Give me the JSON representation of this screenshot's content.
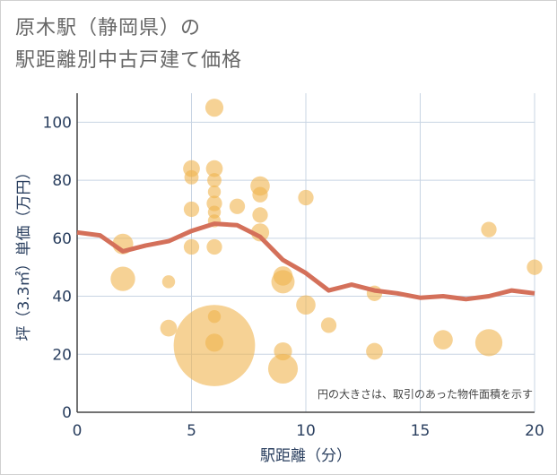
{
  "title_lines": [
    "原木駅（静岡県）の",
    "駅距離別中古戸建て価格"
  ],
  "chart_data": {
    "type": "scatter",
    "xlabel": "駅距離（分）",
    "ylabel": "坪（3.3㎡）単価（万円）",
    "xlim": [
      0,
      20
    ],
    "ylim": [
      0,
      110
    ],
    "xticks": [
      0,
      5,
      10,
      15,
      20
    ],
    "yticks": [
      0,
      20,
      40,
      60,
      80,
      100
    ],
    "annotation": "円の大きさは、取引のあった物件面積を示す",
    "colors": {
      "bubble": "#f0b44f",
      "line": "#d4705a",
      "grid": "#c8d4e3"
    },
    "bubbles": [
      {
        "x": 2,
        "y": 58,
        "size": 1.6
      },
      {
        "x": 2,
        "y": 46,
        "size": 1.9
      },
      {
        "x": 4,
        "y": 45,
        "size": 1.0
      },
      {
        "x": 4,
        "y": 29,
        "size": 1.3
      },
      {
        "x": 5,
        "y": 84,
        "size": 1.3
      },
      {
        "x": 5,
        "y": 81,
        "size": 1.1
      },
      {
        "x": 5,
        "y": 70,
        "size": 1.2
      },
      {
        "x": 5,
        "y": 57,
        "size": 1.2
      },
      {
        "x": 6,
        "y": 105,
        "size": 1.4
      },
      {
        "x": 6,
        "y": 84,
        "size": 1.3
      },
      {
        "x": 6,
        "y": 80,
        "size": 1.1
      },
      {
        "x": 6,
        "y": 76,
        "size": 1.0
      },
      {
        "x": 6,
        "y": 72,
        "size": 1.2
      },
      {
        "x": 6,
        "y": 69,
        "size": 1.0
      },
      {
        "x": 6,
        "y": 66,
        "size": 1.0
      },
      {
        "x": 6,
        "y": 57,
        "size": 1.2
      },
      {
        "x": 6,
        "y": 33,
        "size": 1.0
      },
      {
        "x": 6,
        "y": 24,
        "size": 1.4
      },
      {
        "x": 6,
        "y": 23,
        "size": 6.3
      },
      {
        "x": 7,
        "y": 71,
        "size": 1.2
      },
      {
        "x": 8,
        "y": 78,
        "size": 1.5
      },
      {
        "x": 8,
        "y": 75,
        "size": 1.2
      },
      {
        "x": 8,
        "y": 68,
        "size": 1.2
      },
      {
        "x": 8,
        "y": 62,
        "size": 1.4
      },
      {
        "x": 9,
        "y": 47,
        "size": 1.5
      },
      {
        "x": 9,
        "y": 45,
        "size": 1.8
      },
      {
        "x": 9,
        "y": 21,
        "size": 1.4
      },
      {
        "x": 9,
        "y": 15,
        "size": 2.3
      },
      {
        "x": 10,
        "y": 74,
        "size": 1.2
      },
      {
        "x": 10,
        "y": 37,
        "size": 1.5
      },
      {
        "x": 11,
        "y": 30,
        "size": 1.2
      },
      {
        "x": 13,
        "y": 41,
        "size": 1.2
      },
      {
        "x": 13,
        "y": 21,
        "size": 1.3
      },
      {
        "x": 16,
        "y": 25,
        "size": 1.5
      },
      {
        "x": 18,
        "y": 63,
        "size": 1.2
      },
      {
        "x": 18,
        "y": 24,
        "size": 2.1
      },
      {
        "x": 20,
        "y": 50,
        "size": 1.2
      }
    ],
    "trend": {
      "x": [
        0,
        1,
        2,
        3,
        4,
        5,
        6,
        7,
        8,
        9,
        10,
        11,
        12,
        13,
        14,
        15,
        16,
        17,
        18,
        19,
        20
      ],
      "y": [
        62,
        61,
        55.5,
        57.5,
        59,
        62.5,
        65,
        64.5,
        60.5,
        52.5,
        48,
        42,
        44,
        42,
        41,
        39.5,
        40,
        39,
        40,
        42,
        41
      ]
    }
  }
}
